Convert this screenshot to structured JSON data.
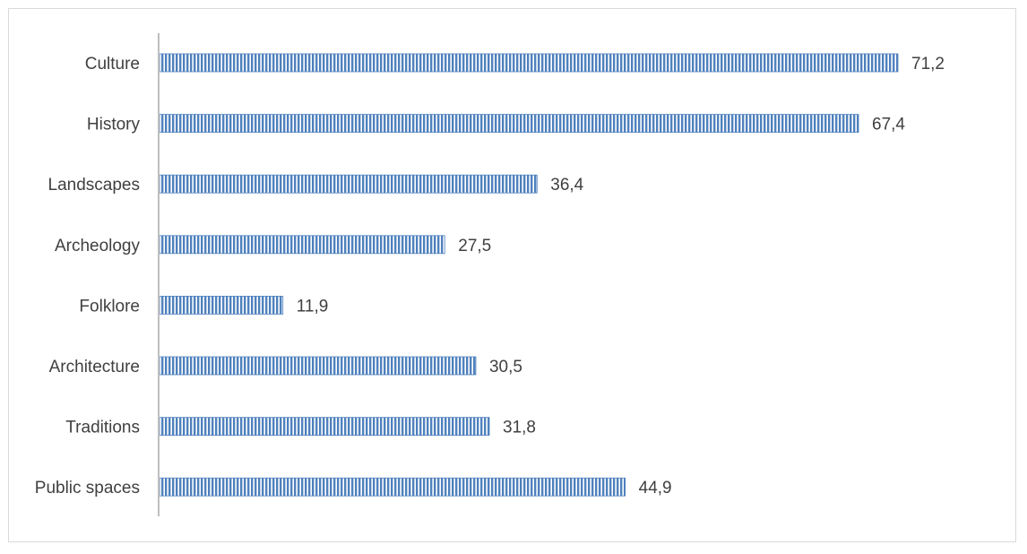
{
  "chart_data": {
    "type": "bar",
    "orientation": "horizontal",
    "categories": [
      "Culture",
      "History",
      "Landscapes",
      "Archeology",
      "Folklore",
      "Architecture",
      "Traditions",
      "Public spaces"
    ],
    "values": [
      71.2,
      67.4,
      36.4,
      27.5,
      11.9,
      30.5,
      31.8,
      44.9
    ],
    "value_labels": [
      "71,2",
      "67,4",
      "36,4",
      "27,5",
      "11,9",
      "30,5",
      "31,8",
      "44,9"
    ],
    "title": "",
    "xlabel": "",
    "ylabel": "",
    "xlim": [
      0,
      71.2
    ],
    "grid": false,
    "legend": "none",
    "bar_color": "#4f81bd",
    "bar_pattern": "vertical-stripes",
    "axis_color": "#bfbfbf",
    "label_color": "#404040",
    "border_color": "#d9d9d9"
  }
}
